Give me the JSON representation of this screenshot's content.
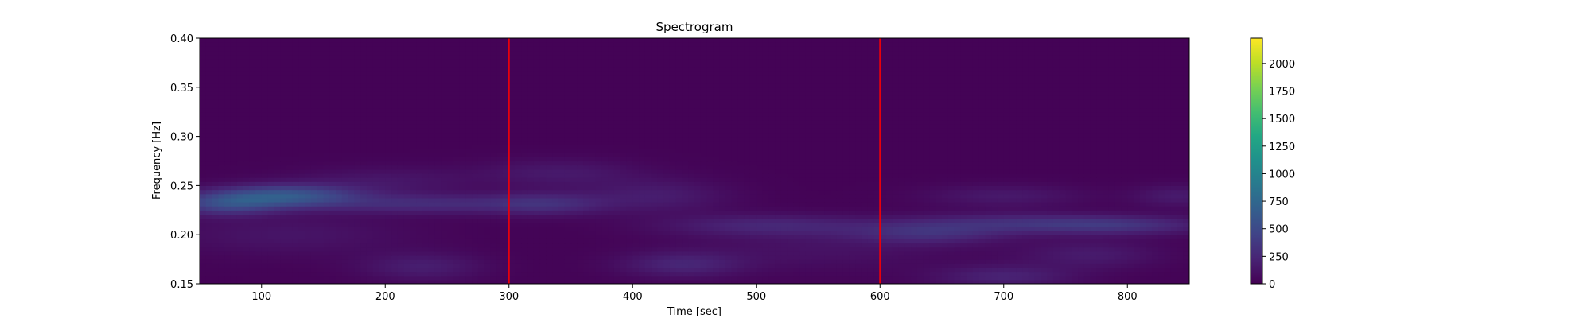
{
  "chart_data": {
    "type": "heatmap",
    "title": "Spectrogram",
    "xlabel": "Time [sec]",
    "ylabel": "Frequency [Hz]",
    "xlim": [
      50,
      850
    ],
    "ylim": [
      0.15,
      0.4
    ],
    "xticks": [
      100,
      200,
      300,
      400,
      500,
      600,
      700,
      800
    ],
    "yticks": [
      0.15,
      0.2,
      0.25,
      0.3,
      0.35,
      0.4
    ],
    "xtick_labels": [
      "100",
      "200",
      "300",
      "400",
      "500",
      "600",
      "700",
      "800"
    ],
    "ytick_labels": [
      "0.15",
      "0.20",
      "0.25",
      "0.30",
      "0.35",
      "0.40"
    ],
    "colormap": "viridis",
    "colorbar": {
      "min": 0,
      "max": 2230,
      "ticks": [
        0,
        250,
        500,
        750,
        1000,
        1250,
        1500,
        1750,
        2000
      ],
      "tick_labels": [
        "0",
        "250",
        "500",
        "750",
        "1000",
        "1250",
        "1500",
        "1750",
        "2000"
      ]
    },
    "vlines": [
      {
        "x": 300,
        "color": "#e8000b"
      },
      {
        "x": 600,
        "color": "#e8000b"
      }
    ],
    "intensity_features": [
      {
        "t": 120,
        "f": 0.24,
        "sigma_t": 40,
        "sigma_f": 0.008,
        "value": 560
      },
      {
        "t": 70,
        "f": 0.232,
        "sigma_t": 30,
        "sigma_f": 0.008,
        "value": 420
      },
      {
        "t": 230,
        "f": 0.232,
        "sigma_t": 60,
        "sigma_f": 0.007,
        "value": 260
      },
      {
        "t": 330,
        "f": 0.232,
        "sigma_t": 35,
        "sigma_f": 0.008,
        "value": 250
      },
      {
        "t": 340,
        "f": 0.263,
        "sigma_t": 45,
        "sigma_f": 0.01,
        "value": 140
      },
      {
        "t": 200,
        "f": 0.255,
        "sigma_t": 50,
        "sigma_f": 0.01,
        "value": 120
      },
      {
        "t": 420,
        "f": 0.24,
        "sigma_t": 40,
        "sigma_f": 0.012,
        "value": 160
      },
      {
        "t": 510,
        "f": 0.21,
        "sigma_t": 60,
        "sigma_f": 0.008,
        "value": 220
      },
      {
        "t": 640,
        "f": 0.202,
        "sigma_t": 45,
        "sigma_f": 0.008,
        "value": 260
      },
      {
        "t": 790,
        "f": 0.21,
        "sigma_t": 55,
        "sigma_f": 0.007,
        "value": 300
      },
      {
        "t": 700,
        "f": 0.213,
        "sigma_t": 60,
        "sigma_f": 0.007,
        "value": 200
      },
      {
        "t": 700,
        "f": 0.24,
        "sigma_t": 45,
        "sigma_f": 0.008,
        "value": 140
      },
      {
        "t": 440,
        "f": 0.17,
        "sigma_t": 35,
        "sigma_f": 0.009,
        "value": 210
      },
      {
        "t": 230,
        "f": 0.168,
        "sigma_t": 35,
        "sigma_f": 0.01,
        "value": 170
      },
      {
        "t": 700,
        "f": 0.158,
        "sigma_t": 40,
        "sigma_f": 0.008,
        "value": 200
      },
      {
        "t": 770,
        "f": 0.18,
        "sigma_t": 40,
        "sigma_f": 0.01,
        "value": 150
      },
      {
        "t": 120,
        "f": 0.2,
        "sigma_t": 70,
        "sigma_f": 0.015,
        "value": 110
      },
      {
        "t": 550,
        "f": 0.185,
        "sigma_t": 80,
        "sigma_f": 0.015,
        "value": 90
      },
      {
        "t": 840,
        "f": 0.24,
        "sigma_t": 25,
        "sigma_f": 0.008,
        "value": 150
      }
    ]
  }
}
